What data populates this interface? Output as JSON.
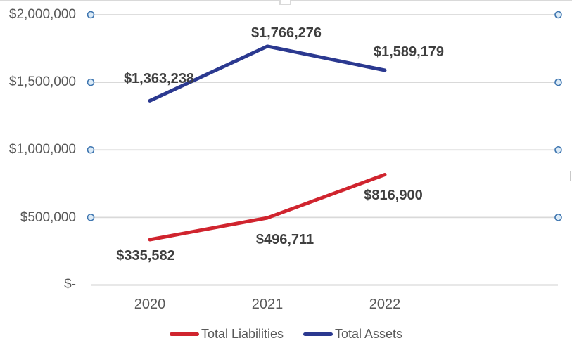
{
  "chart_data": {
    "type": "line",
    "title": "",
    "xlabel": "",
    "ylabel": "",
    "categories": [
      "2020",
      "2021",
      "2022"
    ],
    "series": [
      {
        "name": "Total Liabilities",
        "color": "#d0242e",
        "values": [
          335582,
          496711,
          816900
        ],
        "labels": [
          "$335,582",
          "$496,711",
          "$816,900"
        ]
      },
      {
        "name": "Total Assets",
        "color": "#2b3990",
        "values": [
          1363238,
          1766276,
          1589179
        ],
        "labels": [
          "$1,363,238",
          "$1,766,276",
          "$1,589,179"
        ]
      }
    ],
    "y_axis": {
      "min": 0,
      "max": 2000000,
      "tick_step": 500000,
      "gridlines": true,
      "gridline_color": "#d9d9d9",
      "tick_marker": "open-circle",
      "tick_marker_fill": "#dcebf7",
      "tick_marker_stroke": "#3f76b0",
      "ticks": [
        {
          "label": "$2,000,000",
          "value": 2000000
        },
        {
          "label": "$1,500,000",
          "value": 1500000
        },
        {
          "label": "$1,000,000",
          "value": 1000000
        },
        {
          "label": "$500,000",
          "value": 500000
        },
        {
          "label": "$-",
          "value": 0
        }
      ]
    },
    "legend": {
      "position": "bottom",
      "entries": [
        {
          "label": "Total Liabilities",
          "color": "#d0242e"
        },
        {
          "label": "Total Assets",
          "color": "#2b3990"
        }
      ]
    }
  }
}
